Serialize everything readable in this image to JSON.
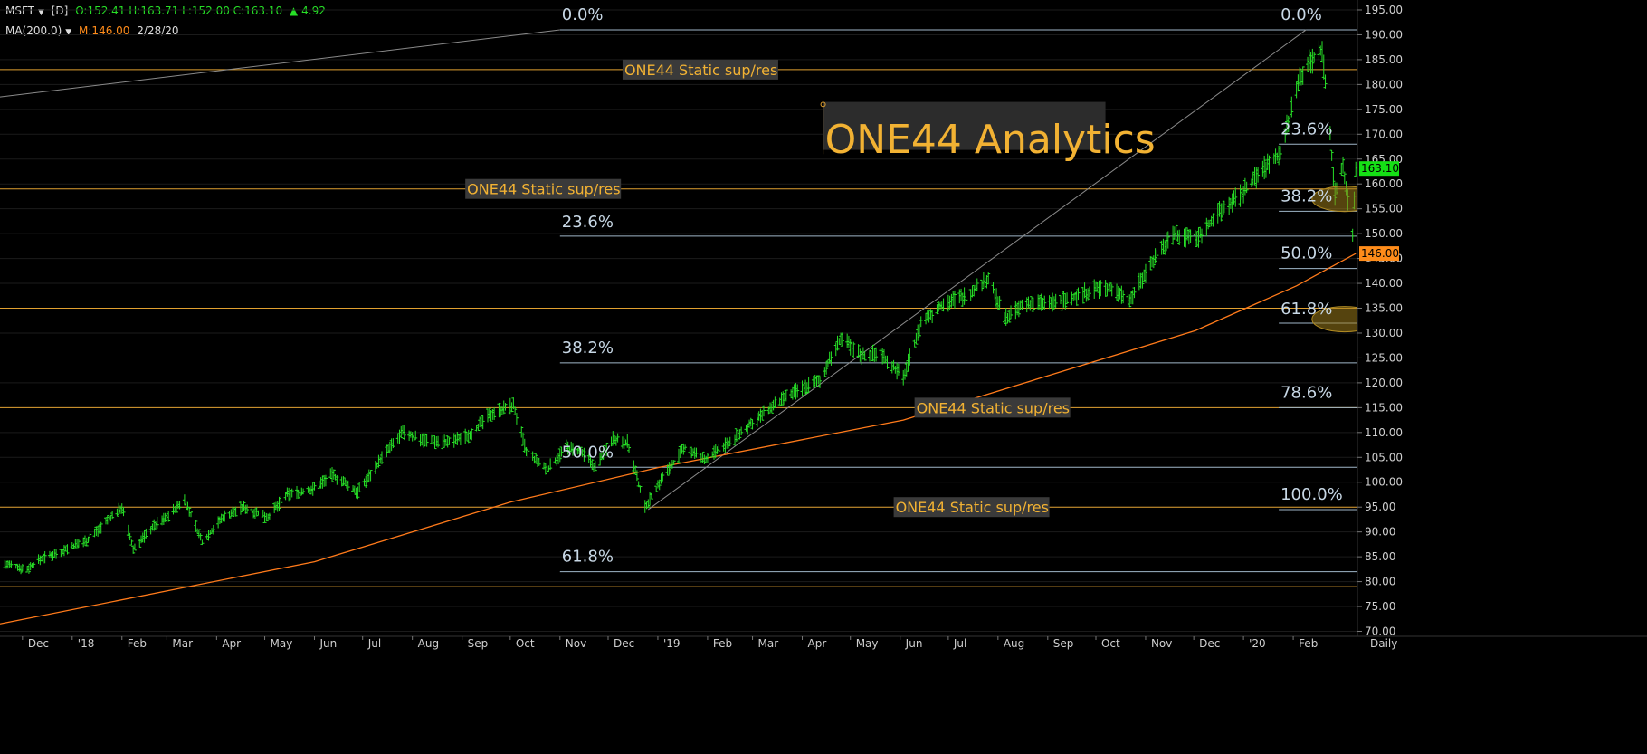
{
  "header": {
    "symbol": "MSFT",
    "interval": "[D]",
    "ohlc": "O:152.41 H:163.71 L:152.00 C:163.10",
    "change_arrow": "▲",
    "change": "4.92",
    "ma_label": "MA(200.0)",
    "ma_value": "M:146.00",
    "ma_date": "2/28/20"
  },
  "colors": {
    "background": "#000000",
    "price_bars": "#27e027",
    "moving_average": "#ff7a1a",
    "static_lines": "#e0a030",
    "fib_lines": "#9fb6c8",
    "fib_text": "#c8d8e6",
    "static_label_text": "#f2b233",
    "static_label_bg": "#3a3a3a",
    "watermark_text": "#f2b233",
    "last_price_badge": "#15e015",
    "ma_badge": "#ff8c1a",
    "highlight_ellipse": "#9a7a1a"
  },
  "chart_data": {
    "type": "ohlc_bar",
    "title": "MSFT [D]",
    "x_axis_labels": [
      "Dec",
      "'18",
      "Feb",
      "Mar",
      "Apr",
      "May",
      "Jun",
      "Jul",
      "Aug",
      "Sep",
      "Oct",
      "Nov",
      "Dec",
      "'19",
      "Feb",
      "Mar",
      "Apr",
      "May",
      "Jun",
      "Jul",
      "Aug",
      "Sep",
      "Oct",
      "Nov",
      "Dec",
      "'20",
      "Feb",
      "Daily"
    ],
    "y_axis_ticks": [
      70,
      75,
      80,
      85,
      90,
      95,
      100,
      105,
      110,
      115,
      120,
      125,
      130,
      135,
      140,
      145,
      150,
      155,
      160,
      165,
      170,
      175,
      180,
      185,
      190,
      195
    ],
    "ylim": [
      69,
      197
    ],
    "x_range": [
      "2017-11-17",
      "2020-03-12"
    ],
    "last_price": "163.10",
    "ma_badge_value": "146.00",
    "price_path": [
      [
        "2017-11-20",
        83.5
      ],
      [
        "2017-12-04",
        82.5
      ],
      [
        "2017-12-12",
        84.5
      ],
      [
        "2017-12-28",
        86.5
      ],
      [
        "2018-01-11",
        88.5
      ],
      [
        "2018-01-22",
        92
      ],
      [
        "2018-02-01",
        95
      ],
      [
        "2018-02-08",
        86.5
      ],
      [
        "2018-02-20",
        91
      ],
      [
        "2018-03-01",
        93
      ],
      [
        "2018-03-12",
        96.5
      ],
      [
        "2018-03-23",
        88
      ],
      [
        "2018-04-05",
        93
      ],
      [
        "2018-04-18",
        95
      ],
      [
        "2018-05-03",
        93
      ],
      [
        "2018-05-15",
        97.5
      ],
      [
        "2018-05-30",
        98.5
      ],
      [
        "2018-06-12",
        101.5
      ],
      [
        "2018-06-28",
        98
      ],
      [
        "2018-07-12",
        104.5
      ],
      [
        "2018-07-26",
        110
      ],
      [
        "2018-08-09",
        108.5
      ],
      [
        "2018-08-24",
        108
      ],
      [
        "2018-09-05",
        109.5
      ],
      [
        "2018-09-20",
        114
      ],
      [
        "2018-10-03",
        115.5
      ],
      [
        "2018-10-11",
        106
      ],
      [
        "2018-10-24",
        102.5
      ],
      [
        "2018-11-05",
        107
      ],
      [
        "2018-11-14",
        106
      ],
      [
        "2018-11-23",
        103
      ],
      [
        "2018-12-04",
        109
      ],
      [
        "2018-12-13",
        108
      ],
      [
        "2018-12-24",
        95
      ],
      [
        "2019-01-04",
        101
      ],
      [
        "2019-01-18",
        107
      ],
      [
        "2019-01-30",
        104.5
      ],
      [
        "2019-02-15",
        108
      ],
      [
        "2019-03-01",
        112
      ],
      [
        "2019-03-15",
        115.5
      ],
      [
        "2019-03-29",
        118.5
      ],
      [
        "2019-04-12",
        120.5
      ],
      [
        "2019-04-25",
        129
      ],
      [
        "2019-05-08",
        125.5
      ],
      [
        "2019-05-20",
        126
      ],
      [
        "2019-06-03",
        121
      ],
      [
        "2019-06-14",
        132
      ],
      [
        "2019-06-28",
        136
      ],
      [
        "2019-07-12",
        137.5
      ],
      [
        "2019-07-26",
        141
      ],
      [
        "2019-08-05",
        133
      ],
      [
        "2019-08-19",
        136
      ],
      [
        "2019-09-03",
        136
      ],
      [
        "2019-09-16",
        137
      ],
      [
        "2019-09-30",
        139
      ],
      [
        "2019-10-10",
        139
      ],
      [
        "2019-10-23",
        137
      ],
      [
        "2019-11-04",
        144
      ],
      [
        "2019-11-18",
        150
      ],
      [
        "2019-12-03",
        149
      ],
      [
        "2019-12-16",
        154
      ],
      [
        "2019-12-31",
        158
      ],
      [
        "2020-01-13",
        163
      ],
      [
        "2020-01-24",
        166
      ],
      [
        "2020-02-04",
        181
      ],
      [
        "2020-02-10",
        184
      ],
      [
        "2020-02-19",
        187
      ],
      [
        "2020-02-24",
        170
      ],
      [
        "2020-02-27",
        158
      ],
      [
        "2020-03-03",
        164
      ],
      [
        "2020-03-09",
        150
      ],
      [
        "2020-03-11",
        163.1
      ]
    ],
    "moving_average": {
      "name": "MA(200.0)",
      "points": [
        [
          "2017-11-17",
          71.5
        ],
        [
          "2018-06-01",
          84
        ],
        [
          "2018-10-01",
          96
        ],
        [
          "2019-01-02",
          103
        ],
        [
          "2019-06-03",
          112.5
        ],
        [
          "2019-09-02",
          121.5
        ],
        [
          "2019-12-02",
          130.5
        ],
        [
          "2020-02-03",
          139.5
        ],
        [
          "2020-03-11",
          146
        ]
      ]
    },
    "trend_lines": [
      {
        "from": [
          "2017-11-17",
          177.5
        ],
        "to": [
          "2018-11-01",
          191
        ]
      },
      {
        "from": [
          "2018-12-26",
          94.5
        ],
        "to": [
          "2020-02-09",
          191
        ]
      }
    ],
    "static_levels": [
      {
        "price": 183,
        "label": "ONE44 Static sup/res",
        "label_date": "2018-12-10"
      },
      {
        "price": 159,
        "label": "ONE44 Static sup/res",
        "label_date": "2018-09-03"
      },
      {
        "price": 135,
        "label": ""
      },
      {
        "price": 115,
        "label": "ONE44 Static sup/res",
        "label_date": "2019-06-10"
      },
      {
        "price": 95,
        "label": "ONE44 Static sup/res",
        "label_date": "2019-05-28"
      },
      {
        "price": 79,
        "label": ""
      }
    ],
    "fib_set_1": {
      "start": "2018-11-01",
      "end": "2020-03-12",
      "levels": [
        {
          "label": "0.0%",
          "price": 191,
          "label_price": 193
        },
        {
          "label": "23.6%",
          "price": 149.5,
          "label_price": 151.3
        },
        {
          "label": "38.2%",
          "price": 124,
          "label_price": 126
        },
        {
          "label": "50.0%",
          "price": 103,
          "label_price": 105
        },
        {
          "label": "61.8%",
          "price": 82,
          "label_price": 84
        }
      ]
    },
    "fib_set_2": {
      "start": "2020-01-23",
      "end": "2020-03-12",
      "levels": [
        {
          "label": "0.0%",
          "price": 191,
          "label_price": 193
        },
        {
          "label": "23.6%",
          "price": 168,
          "label_price": 170
        },
        {
          "label": "38.2%",
          "price": 154.5,
          "label_price": 156.5
        },
        {
          "label": "50.0%",
          "price": 143,
          "label_price": 145
        },
        {
          "label": "61.8%",
          "price": 132,
          "label_price": 133.8
        },
        {
          "label": "78.6%",
          "price": 115,
          "label_price": 117
        },
        {
          "label": "100.0%",
          "price": 94.5,
          "label_price": 96.5
        }
      ]
    },
    "highlight_zones": [
      {
        "date": "2020-03-04",
        "price": 157
      },
      {
        "date": "2020-03-04",
        "price": 132.8
      }
    ],
    "watermark": {
      "text": "ONE44 Analytics",
      "date": "2019-04-14",
      "price": 169,
      "marker_top": 176
    }
  }
}
